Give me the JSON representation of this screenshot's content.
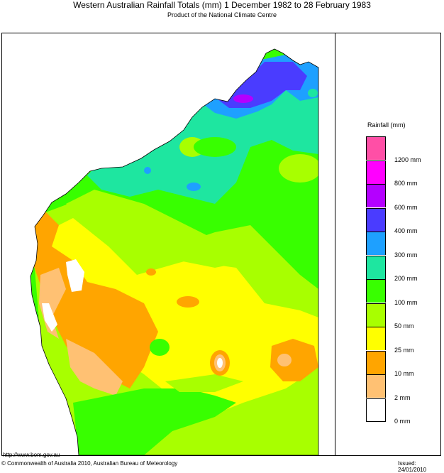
{
  "title": "Western Australian Rainfall Totals (mm) 1 December 1982 to 28 February 1983",
  "subtitle": "Product of the National Climate Centre",
  "legend": {
    "title": "Rainfall (mm)",
    "bands": [
      {
        "color": "#ff4fa6"
      },
      {
        "color": "#ff00ff"
      },
      {
        "color": "#b400ff"
      },
      {
        "color": "#4a3cff"
      },
      {
        "color": "#1ea0ff"
      },
      {
        "color": "#1ee6a0"
      },
      {
        "color": "#38ff00"
      },
      {
        "color": "#a8ff00"
      },
      {
        "color": "#ffff00"
      },
      {
        "color": "#ffa500"
      },
      {
        "color": "#ffc173"
      },
      {
        "color": "#ffffff"
      }
    ],
    "labels": [
      "1200 mm",
      "800 mm",
      "600 mm",
      "400 mm",
      "300 mm",
      "200 mm",
      "100 mm",
      "50 mm",
      "25 mm",
      "10 mm",
      "2 mm",
      "0 mm"
    ]
  },
  "footer": {
    "url": "http://www.bom.gov.au",
    "copyright": "© Commonwealth of Australia 2010, Australian Bureau of Meteorology",
    "issued": "Issued: 24/01/2010"
  }
}
